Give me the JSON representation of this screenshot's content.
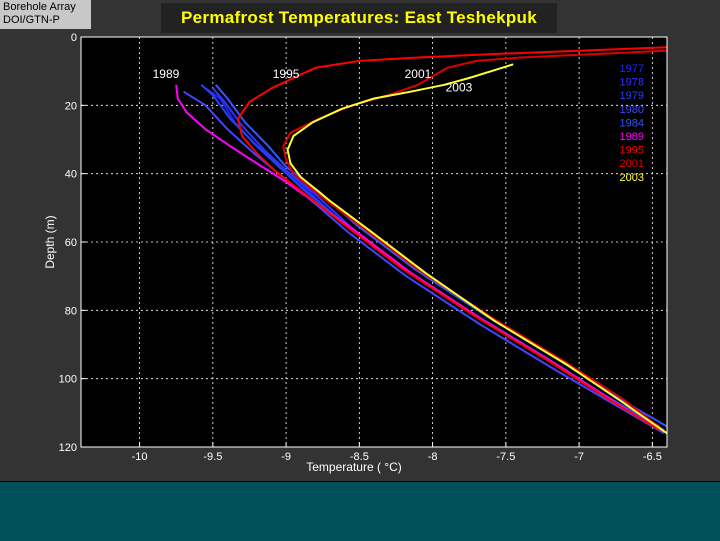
{
  "badge": {
    "line1": "Borehole Array",
    "line2": "DOI/GTN-P"
  },
  "colors": {
    "background": "#333333",
    "plot_bg": "#000000",
    "title_text": "#ffff00",
    "footer": "#00505a"
  },
  "chart_data": {
    "type": "line",
    "title": "Permafrost Temperatures:  East Teshekpuk",
    "xlabel": "Temperature ( °C)",
    "ylabel": "Depth (m)",
    "xlim": [
      -10.4,
      -6.4
    ],
    "ylim": [
      0,
      120
    ],
    "y_reversed": true,
    "grid": true,
    "xticks": [
      -10,
      -9.5,
      -9,
      -8.5,
      -8,
      -7.5,
      -7,
      -6.5
    ],
    "xtick_labels": [
      "-10",
      "-9.5",
      "-9",
      "-8.5",
      "-8",
      "-7.5",
      "-7",
      "-6.5"
    ],
    "yticks": [
      0,
      20,
      40,
      60,
      80,
      100,
      120
    ],
    "ytick_labels": [
      "0",
      "20",
      "40",
      "60",
      "80",
      "100",
      "120"
    ],
    "legend_position": "top-right",
    "series": [
      {
        "name": "1977",
        "color": "#2222ff",
        "points": [
          [
            -9.55,
            15
          ],
          [
            -9.45,
            18
          ],
          [
            -9.35,
            25
          ],
          [
            -9.2,
            32
          ],
          [
            -9.05,
            38
          ],
          [
            -8.85,
            45
          ],
          [
            -8.6,
            55
          ],
          [
            -8.2,
            68
          ],
          [
            -7.7,
            82
          ],
          [
            -7.2,
            95
          ],
          [
            -6.8,
            106
          ],
          [
            -6.45,
            115
          ]
        ]
      },
      {
        "name": "1978",
        "color": "#3333ff",
        "points": [
          [
            -9.5,
            15
          ],
          [
            -9.42,
            19
          ],
          [
            -9.3,
            26
          ],
          [
            -9.15,
            33
          ],
          [
            -9.0,
            39
          ],
          [
            -8.8,
            46
          ],
          [
            -8.55,
            56
          ],
          [
            -8.15,
            69
          ],
          [
            -7.65,
            83
          ],
          [
            -7.15,
            96
          ],
          [
            -6.75,
            107
          ],
          [
            -6.42,
            115
          ]
        ]
      },
      {
        "name": "1979",
        "color": "#2244ee",
        "points": [
          [
            -9.58,
            14
          ],
          [
            -9.5,
            17
          ],
          [
            -9.38,
            24
          ],
          [
            -9.22,
            31
          ],
          [
            -9.07,
            37
          ],
          [
            -8.9,
            44
          ],
          [
            -8.62,
            54
          ],
          [
            -8.22,
            67
          ],
          [
            -7.72,
            81
          ],
          [
            -7.22,
            94
          ],
          [
            -6.82,
            105
          ],
          [
            -6.45,
            114
          ]
        ]
      },
      {
        "name": "1980",
        "color": "#4444ff",
        "points": [
          [
            -9.7,
            16
          ],
          [
            -9.55,
            20
          ],
          [
            -9.4,
            27
          ],
          [
            -9.22,
            34
          ],
          [
            -9.05,
            40
          ],
          [
            -8.85,
            47
          ],
          [
            -8.58,
            57
          ],
          [
            -8.18,
            70
          ],
          [
            -7.68,
            84
          ],
          [
            -7.18,
            97
          ],
          [
            -6.78,
            107
          ],
          [
            -6.42,
            116
          ]
        ]
      },
      {
        "name": "1984",
        "color": "#3355ff",
        "points": [
          [
            -9.48,
            14
          ],
          [
            -9.4,
            18
          ],
          [
            -9.28,
            25
          ],
          [
            -9.12,
            32
          ],
          [
            -9.0,
            38
          ],
          [
            -8.78,
            45
          ],
          [
            -8.52,
            55
          ],
          [
            -8.12,
            68
          ],
          [
            -7.62,
            82
          ],
          [
            -7.12,
            95
          ],
          [
            -6.72,
            106
          ],
          [
            -6.4,
            114
          ]
        ]
      },
      {
        "name": "1989",
        "color": "#ff00ff",
        "points": [
          [
            -9.75,
            14
          ],
          [
            -9.74,
            18
          ],
          [
            -9.68,
            22
          ],
          [
            -9.55,
            27
          ],
          [
            -9.38,
            32
          ],
          [
            -9.2,
            37
          ],
          [
            -9.05,
            41
          ],
          [
            -8.85,
            47
          ],
          [
            -8.55,
            56
          ],
          [
            -8.15,
            69
          ],
          [
            -7.65,
            83
          ],
          [
            -7.15,
            96
          ],
          [
            -6.75,
            107
          ],
          [
            -6.45,
            115
          ]
        ]
      },
      {
        "name": "1995",
        "color": "#ff0000",
        "points": [
          [
            -6.4,
            3
          ],
          [
            -7.0,
            4
          ],
          [
            -7.6,
            5
          ],
          [
            -8.1,
            6
          ],
          [
            -8.5,
            7
          ],
          [
            -8.8,
            9
          ],
          [
            -8.95,
            12
          ],
          [
            -9.1,
            15
          ],
          [
            -9.25,
            19
          ],
          [
            -9.33,
            24
          ],
          [
            -9.3,
            29
          ],
          [
            -9.2,
            34
          ],
          [
            -9.08,
            39
          ],
          [
            -8.9,
            45
          ],
          [
            -8.6,
            55
          ],
          [
            -8.2,
            68
          ],
          [
            -7.7,
            82
          ],
          [
            -7.2,
            95
          ],
          [
            -6.8,
            106
          ],
          [
            -6.45,
            115
          ]
        ]
      },
      {
        "name": "2001",
        "color": "#dd0000",
        "points": [
          [
            -6.4,
            4
          ],
          [
            -6.9,
            5
          ],
          [
            -7.4,
            6
          ],
          [
            -7.7,
            7
          ],
          [
            -7.9,
            9
          ],
          [
            -7.98,
            11
          ],
          [
            -8.1,
            14
          ],
          [
            -8.3,
            17
          ],
          [
            -8.55,
            20
          ],
          [
            -8.78,
            24
          ],
          [
            -8.97,
            28
          ],
          [
            -9.02,
            32
          ],
          [
            -9.0,
            36
          ],
          [
            -8.95,
            40
          ],
          [
            -8.75,
            47
          ],
          [
            -8.5,
            55
          ],
          [
            -8.1,
            68
          ],
          [
            -7.6,
            82
          ],
          [
            -7.1,
            95
          ],
          [
            -6.7,
            106
          ],
          [
            -6.4,
            116
          ]
        ]
      },
      {
        "name": "2003",
        "color": "#ffff33",
        "points": [
          [
            -7.45,
            8
          ],
          [
            -7.6,
            10
          ],
          [
            -7.75,
            12
          ],
          [
            -7.92,
            14
          ],
          [
            -8.15,
            16
          ],
          [
            -8.4,
            18
          ],
          [
            -8.62,
            21
          ],
          [
            -8.82,
            25
          ],
          [
            -8.95,
            29
          ],
          [
            -8.99,
            33
          ],
          [
            -8.97,
            37
          ],
          [
            -8.9,
            41
          ],
          [
            -8.7,
            48
          ],
          [
            -8.45,
            56
          ],
          [
            -8.05,
            69
          ],
          [
            -7.58,
            83
          ],
          [
            -7.08,
            96
          ],
          [
            -6.7,
            107
          ],
          [
            -6.4,
            116
          ]
        ]
      }
    ],
    "annotations": [
      {
        "text": "1989",
        "x": -9.82,
        "y": 12
      },
      {
        "text": "1995",
        "x": -9.0,
        "y": 12
      },
      {
        "text": "2001",
        "x": -8.1,
        "y": 12
      },
      {
        "text": "2003",
        "x": -7.82,
        "y": 16
      }
    ]
  }
}
